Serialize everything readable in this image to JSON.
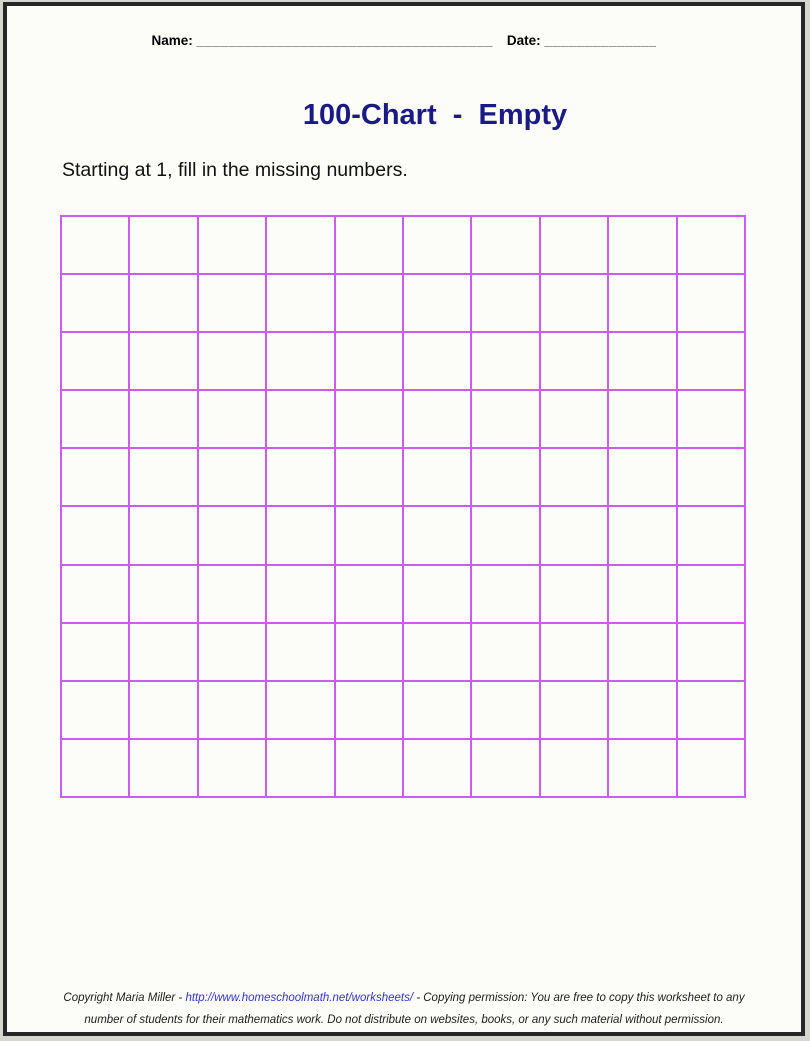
{
  "header": {
    "name_label": "Name:",
    "name_line": "_____________________________________",
    "date_label": "Date:",
    "date_line": "______________"
  },
  "title": "100-Chart  -  Empty",
  "instruction": "Starting at 1, fill in the missing numbers.",
  "grid": {
    "rows": 10,
    "cols": 10,
    "cell_values": [],
    "line_color": "#cb5cf0"
  },
  "footer": {
    "line1_prefix": "Copyright Maria Miller - ",
    "link": "http://www.homeschoolmath.net/worksheets/",
    "line1_suffix": " - Copying permission: You are free to copy this worksheet to any",
    "line2": "number of students for their mathematics work. Do not distribute on websites, books, or any such material without permission."
  },
  "colors": {
    "title": "#1a1a85",
    "grid_line": "#cb5cf0",
    "link": "#3333cc",
    "page_border": "#262626",
    "page_bg": "#fcfdf9",
    "outer_bg": "#d6d6d1"
  }
}
